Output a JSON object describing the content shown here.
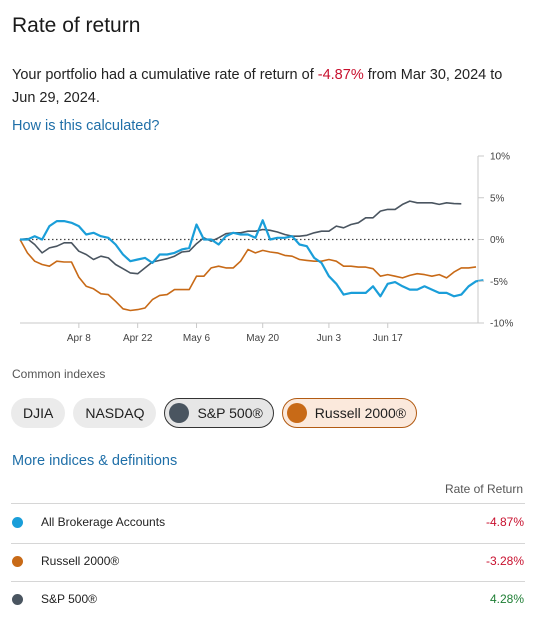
{
  "header": {
    "title": "Rate of return"
  },
  "summary": {
    "prefix": "Your portfolio had a cumulative rate of return of ",
    "value": "-4.87%",
    "suffix": " from Mar 30, 2024 to Jun 29, 2024."
  },
  "how_link": "How is this calculated?",
  "colors": {
    "accounts": "#1a9ed9",
    "russell": "#c86a17",
    "sp500": "#4a5560",
    "negative": "#c8102e",
    "positive": "#1e7e34"
  },
  "chart_data": {
    "type": "line",
    "y_ticks": [
      "10%",
      "5%",
      "0%",
      "-5%",
      "-10%"
    ],
    "y_tick_values": [
      10,
      5,
      0,
      -5,
      -10
    ],
    "ylim": [
      -10,
      10
    ],
    "x_ticks": [
      "Apr 8",
      "Apr 22",
      "May 6",
      "May 20",
      "Jun 3",
      "Jun 17"
    ],
    "x_tick_index": [
      8,
      16,
      24,
      33,
      42,
      50
    ],
    "zero_line": "dotted",
    "series": [
      {
        "name": "All Brokerage Accounts",
        "color": "#1a9ed9",
        "values": [
          0,
          0,
          0.4,
          0,
          1.6,
          2.2,
          2.2,
          2,
          1.6,
          0.6,
          0.8,
          0.4,
          0.2,
          -0.6,
          -1.8,
          -2.6,
          -2.4,
          -2.2,
          -2.8,
          -1.8,
          -1.8,
          -1.6,
          -1.2,
          -1,
          1.8,
          0,
          0,
          -0.6,
          0.4,
          0.8,
          0.6,
          0.6,
          0.2,
          2.3,
          0,
          0.2,
          0.2,
          0.4,
          -0.6,
          -0.8,
          -2.2,
          -2.8,
          -4.4,
          -5.3,
          -6.6,
          -6.4,
          -6.4,
          -6.4,
          -5.6,
          -6.8,
          -5.3,
          -5.1,
          -5.6,
          -6,
          -6,
          -5.6,
          -6,
          -6.4,
          -6.4,
          -6.8,
          -6.6,
          -5.6,
          -5,
          -4.87
        ]
      },
      {
        "name": "Russell 2000®",
        "color": "#c86a17",
        "values": [
          0,
          -1.6,
          -2.6,
          -3,
          -3.2,
          -2.6,
          -2.7,
          -2.7,
          -4.5,
          -5.6,
          -5.9,
          -6.5,
          -6.6,
          -7.4,
          -8.3,
          -8.5,
          -8.4,
          -8.2,
          -7.2,
          -6.7,
          -6.6,
          -6,
          -6,
          -6,
          -4.4,
          -4.4,
          -3.4,
          -3.2,
          -3.4,
          -3.4,
          -2.6,
          -1.2,
          -1.6,
          -1.3,
          -1.5,
          -1.6,
          -1.9,
          -2,
          -2.4,
          -2.5,
          -2.6,
          -2.6,
          -2.4,
          -2.6,
          -3.2,
          -3.2,
          -3.3,
          -3.3,
          -3.5,
          -4.4,
          -4.2,
          -4.4,
          -4.6,
          -4.3,
          -4.1,
          -4.2,
          -4.4,
          -4.2,
          -4.6,
          -3.9,
          -3.4,
          -3.4,
          -3.28
        ]
      },
      {
        "name": "S&P 500®",
        "color": "#4a5560",
        "values": [
          0,
          0.1,
          -0.6,
          -1.6,
          -1,
          -0.8,
          -0.4,
          -0.4,
          -1.4,
          -1.8,
          -2.4,
          -2,
          -2.2,
          -3,
          -3.5,
          -4,
          -4.1,
          -3.4,
          -2.7,
          -2.5,
          -2.3,
          -2,
          -1.5,
          -1.4,
          -0.5,
          0.2,
          -0.2,
          0.2,
          0.7,
          0.8,
          0.8,
          1,
          1,
          1.2,
          1.1,
          0.9,
          0.6,
          0.4,
          0.4,
          0.5,
          0.8,
          1,
          1,
          1.6,
          1.4,
          1.8,
          2,
          2.6,
          2.6,
          3.4,
          3.6,
          3.6,
          4.2,
          4.6,
          4.4,
          4.4,
          4.4,
          4.2,
          4.4,
          4.3,
          4.28
        ]
      }
    ]
  },
  "indexes": {
    "heading": "Common indexes",
    "chips": [
      {
        "label": "DJIA",
        "selected": false
      },
      {
        "label": "NASDAQ",
        "selected": false
      },
      {
        "label": "S&P 500®",
        "selected": true
      },
      {
        "label": "Russell 2000®",
        "selected": true
      }
    ]
  },
  "more_link": "More indices & definitions",
  "table": {
    "column_header": "Rate of Return",
    "rows": [
      {
        "name": "All Brokerage Accounts",
        "value": "-4.87%",
        "color": "#1a9ed9"
      },
      {
        "name": "Russell 2000®",
        "value": "-3.28%",
        "color": "#c86a17"
      },
      {
        "name": "S&P 500®",
        "value": "4.28%",
        "color": "#4a5560"
      }
    ]
  }
}
